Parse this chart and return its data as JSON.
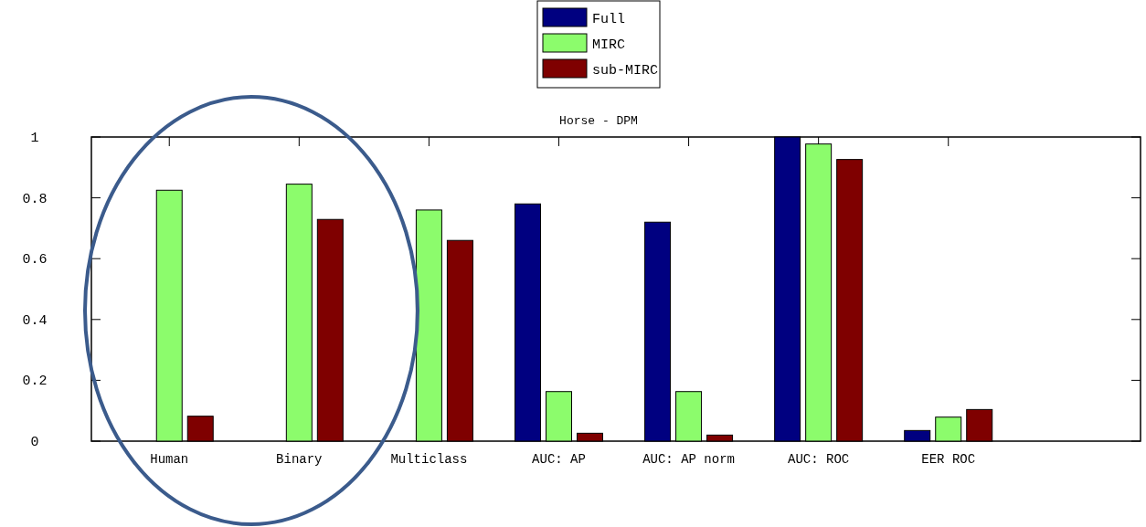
{
  "chart_data": {
    "type": "bar",
    "title": "Horse - DPM",
    "categories": [
      "Human",
      "Binary",
      "Multiclass",
      "AUC: AP",
      "AUC: AP norm",
      "AUC: ROC",
      "EER ROC"
    ],
    "series": [
      {
        "name": "Full",
        "color": "#000080",
        "values": [
          null,
          null,
          null,
          0.78,
          0.72,
          1.0,
          0.035
        ]
      },
      {
        "name": "MIRC",
        "color": "#8cfc6c",
        "values": [
          0.825,
          0.845,
          0.76,
          0.163,
          0.163,
          0.977,
          0.079
        ]
      },
      {
        "name": "sub-MIRC",
        "color": "#7f0000",
        "values": [
          0.082,
          0.729,
          0.66,
          0.026,
          0.02,
          0.926,
          0.104
        ]
      }
    ],
    "ylim": [
      0,
      1
    ],
    "yticks": [
      0,
      0.2,
      0.4,
      0.6,
      0.8,
      1
    ],
    "legend": "top",
    "grid": false
  }
}
